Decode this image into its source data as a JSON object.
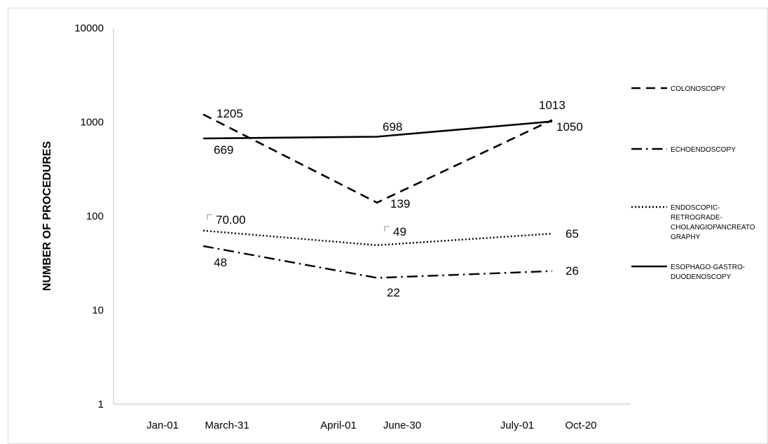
{
  "chart_data": {
    "type": "line",
    "ylabel": "NUMBER OF PROCEDURES",
    "yscale": "log",
    "ylim": [
      1,
      10000
    ],
    "y_ticks": [
      "1",
      "10",
      "100",
      "1000",
      "10000"
    ],
    "x_tick_labels": [
      "Jan-01",
      "March-31",
      "April-01",
      "June-30",
      "July-01",
      "Oct-20"
    ],
    "x_tick_groups": [
      [
        "Jan-01",
        "March-31"
      ],
      [
        "April-01",
        "June-30"
      ],
      [
        "July-01",
        "Oct-20"
      ]
    ],
    "categories": [
      "Jan-01 March-31",
      "April-01 June-30",
      "July-01 Oct-20"
    ],
    "legend_position": "right",
    "gridlines": false,
    "series": [
      {
        "name": "COLONOSCOPY",
        "style": "dashed",
        "values": [
          1205,
          139,
          1050
        ],
        "labels": [
          "1205",
          "139",
          "1050"
        ]
      },
      {
        "name": "ECHOENDOSCOPY",
        "style": "dash-dot",
        "values": [
          48,
          22,
          26
        ],
        "labels": [
          "48",
          "22",
          "26"
        ]
      },
      {
        "name": "ENDOSCOPIC-RETROGRADE-CHOLANGIOPANCREATOGRAPHY",
        "legend_lines": [
          "ENDOSCOPIC-",
          "RETROGRADE-",
          "CHOLANGIOPANCREATO",
          "GRAPHY"
        ],
        "style": "dotted",
        "values": [
          70,
          49,
          65
        ],
        "labels": [
          "70.00",
          "49",
          "65"
        ]
      },
      {
        "name": "ESOPHAGO-GASTRO-DUODENOSCOPY",
        "legend_lines": [
          "ESOPHAGO-GASTRO-",
          "DUODENOSCOPY"
        ],
        "style": "solid",
        "values": [
          669,
          698,
          1013
        ],
        "labels": [
          "669",
          "698",
          "1013"
        ]
      }
    ]
  }
}
